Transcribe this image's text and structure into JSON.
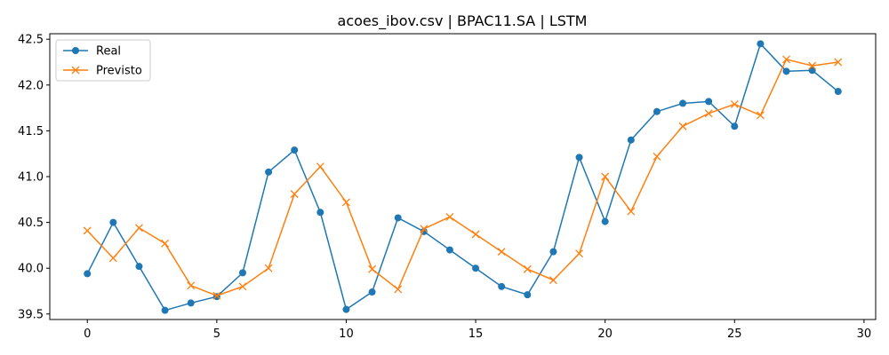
{
  "chart_data": {
    "type": "line",
    "title": "acoes_ibov.csv | BPAC11.SA | LSTM",
    "xlabel": "",
    "ylabel": "",
    "x": [
      0,
      1,
      2,
      3,
      4,
      5,
      6,
      7,
      8,
      9,
      10,
      11,
      12,
      13,
      14,
      15,
      16,
      17,
      18,
      19,
      20,
      21,
      22,
      23,
      24,
      25,
      26,
      27,
      28,
      29
    ],
    "xlim": [
      -1.45,
      30.45
    ],
    "ylim": [
      39.44,
      42.56
    ],
    "xticks": [
      0,
      5,
      10,
      15,
      20,
      25,
      30
    ],
    "xtick_labels": [
      "0",
      "5",
      "10",
      "15",
      "20",
      "25",
      "30"
    ],
    "yticks": [
      39.5,
      40.0,
      40.5,
      41.0,
      41.5,
      42.0,
      42.5
    ],
    "ytick_labels": [
      "39.5",
      "40.0",
      "40.5",
      "41.0",
      "41.5",
      "42.0",
      "42.5"
    ],
    "grid": false,
    "legend_position": "top-left",
    "series": [
      {
        "name": "Real",
        "color": "#1f77b4",
        "marker": "circle",
        "values": [
          39.94,
          40.5,
          40.02,
          39.54,
          39.62,
          39.69,
          39.95,
          41.05,
          41.29,
          40.61,
          39.55,
          39.74,
          40.55,
          40.4,
          40.2,
          40.0,
          39.8,
          39.71,
          40.18,
          41.21,
          40.51,
          41.4,
          41.71,
          41.8,
          41.82,
          41.55,
          42.45,
          42.15,
          42.16,
          41.93
        ]
      },
      {
        "name": "Previsto",
        "color": "#ff7f0e",
        "marker": "x",
        "values": [
          40.41,
          40.11,
          40.44,
          40.27,
          39.81,
          39.7,
          39.8,
          40.0,
          40.81,
          41.11,
          40.72,
          39.99,
          39.77,
          40.43,
          40.56,
          40.37,
          40.18,
          39.99,
          39.87,
          40.16,
          41.0,
          40.62,
          41.22,
          41.55,
          41.69,
          41.79,
          41.67,
          42.28,
          42.21,
          42.25
        ]
      }
    ]
  }
}
